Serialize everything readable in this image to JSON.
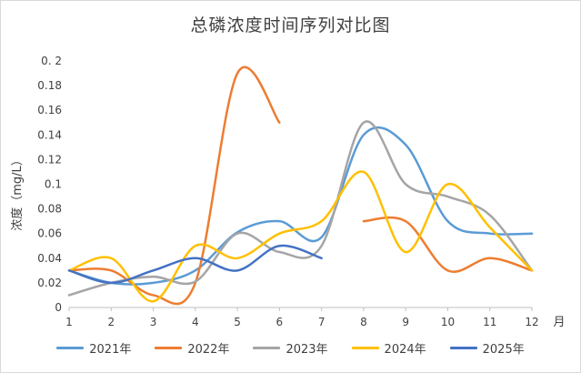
{
  "chart_data": {
    "type": "line",
    "title": "总磷浓度时间序列对比图",
    "xlabel": "月",
    "ylabel": "浓度（mg/L）",
    "x": [
      1,
      2,
      3,
      4,
      5,
      6,
      7,
      8,
      9,
      10,
      11,
      12
    ],
    "xlim": [
      1,
      12
    ],
    "ylim": [
      0,
      0.2
    ],
    "yticks": [
      "0",
      "0.02",
      "0.04",
      "0.06",
      "0.08",
      "0.1",
      "0.12",
      "0.14",
      "0.16",
      "0.18",
      "0. 2"
    ],
    "ytick_values": [
      0,
      0.02,
      0.04,
      0.06,
      0.08,
      0.1,
      0.12,
      0.14,
      0.16,
      0.18,
      0.2
    ],
    "xticks": [
      "1",
      "2",
      "3",
      "4",
      "5",
      "6",
      "7",
      "8",
      "9",
      "10",
      "11",
      "12"
    ],
    "grid": false,
    "legend_position": "bottom",
    "smooth": true,
    "series": [
      {
        "name": "2021年",
        "color": "#5b9bd5",
        "segments": [
          [
            [
              1,
              0.03
            ],
            [
              2,
              0.02
            ],
            [
              3,
              0.02
            ],
            [
              4,
              0.03
            ],
            [
              5,
              0.061
            ],
            [
              6,
              0.07
            ],
            [
              7,
              0.057
            ],
            [
              8,
              0.14
            ],
            [
              9,
              0.132
            ],
            [
              10,
              0.07
            ],
            [
              11,
              0.06
            ],
            [
              12,
              0.06
            ]
          ]
        ]
      },
      {
        "name": "2022年",
        "color": "#ed7d31",
        "segments": [
          [
            [
              1,
              0.03
            ],
            [
              2,
              0.03
            ],
            [
              3,
              0.01
            ],
            [
              4,
              0.02
            ],
            [
              5,
              0.19
            ],
            [
              6,
              0.15
            ]
          ],
          [
            [
              8,
              0.07
            ],
            [
              9,
              0.07
            ],
            [
              10,
              0.03
            ],
            [
              11,
              0.04
            ],
            [
              12,
              0.03
            ]
          ]
        ]
      },
      {
        "name": "2023年",
        "color": "#a5a5a5",
        "segments": [
          [
            [
              1,
              0.01
            ],
            [
              2,
              0.02
            ],
            [
              3,
              0.025
            ],
            [
              4,
              0.021
            ],
            [
              5,
              0.06
            ],
            [
              6,
              0.045
            ],
            [
              7,
              0.05
            ],
            [
              8,
              0.15
            ],
            [
              9,
              0.1
            ],
            [
              10,
              0.09
            ],
            [
              11,
              0.075
            ],
            [
              12,
              0.03
            ]
          ]
        ]
      },
      {
        "name": "2024年",
        "color": "#ffc000",
        "segments": [
          [
            [
              1,
              0.03
            ],
            [
              2,
              0.04
            ],
            [
              3,
              0.005
            ],
            [
              4,
              0.05
            ],
            [
              5,
              0.04
            ],
            [
              6,
              0.06
            ],
            [
              7,
              0.07
            ],
            [
              8,
              0.11
            ],
            [
              9,
              0.045
            ],
            [
              10,
              0.1
            ],
            [
              11,
              0.065
            ],
            [
              12,
              0.03
            ]
          ]
        ]
      },
      {
        "name": "2025年",
        "color": "#4472c4",
        "segments": [
          [
            [
              1,
              0.03
            ],
            [
              2,
              0.02
            ],
            [
              3,
              0.03
            ],
            [
              4,
              0.04
            ],
            [
              5,
              0.03
            ],
            [
              6,
              0.05
            ],
            [
              7,
              0.04
            ]
          ]
        ]
      }
    ]
  }
}
